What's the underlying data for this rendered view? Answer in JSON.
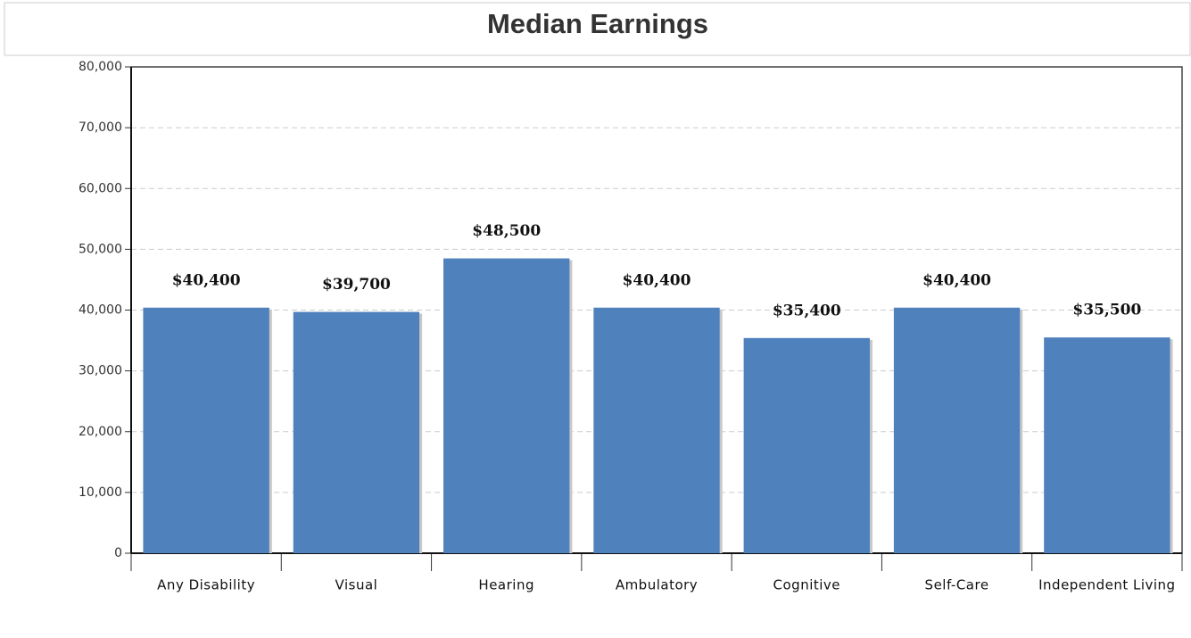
{
  "chart_data": {
    "type": "bar",
    "title": "Median Earnings",
    "categories": [
      "Any Disability",
      "Visual",
      "Hearing",
      "Ambulatory",
      "Cognitive",
      "Self-Care",
      "Independent Living"
    ],
    "values": [
      40400,
      39700,
      48500,
      40400,
      35400,
      40400,
      35500
    ],
    "value_labels": [
      "$40,400",
      "$39,700",
      "$48,500",
      "$40,400",
      "$35,400",
      "$40,400",
      "$35,500"
    ],
    "color": "#4f81bd",
    "ylim": [
      0,
      80000
    ],
    "yticks": [
      0,
      {
        "value": 10000,
        "label": "10,000"
      },
      {
        "value": 20000,
        "label": "20,000"
      },
      {
        "value": 30000,
        "label": "30,000"
      },
      {
        "value": 40000,
        "label": "40,000"
      },
      {
        "value": 50000,
        "label": "50,000"
      },
      {
        "value": 60000,
        "label": "60,000"
      },
      {
        "value": 70000,
        "label": "70,000"
      },
      {
        "value": 80000,
        "label": "80,000"
      }
    ],
    "grid": true
  }
}
